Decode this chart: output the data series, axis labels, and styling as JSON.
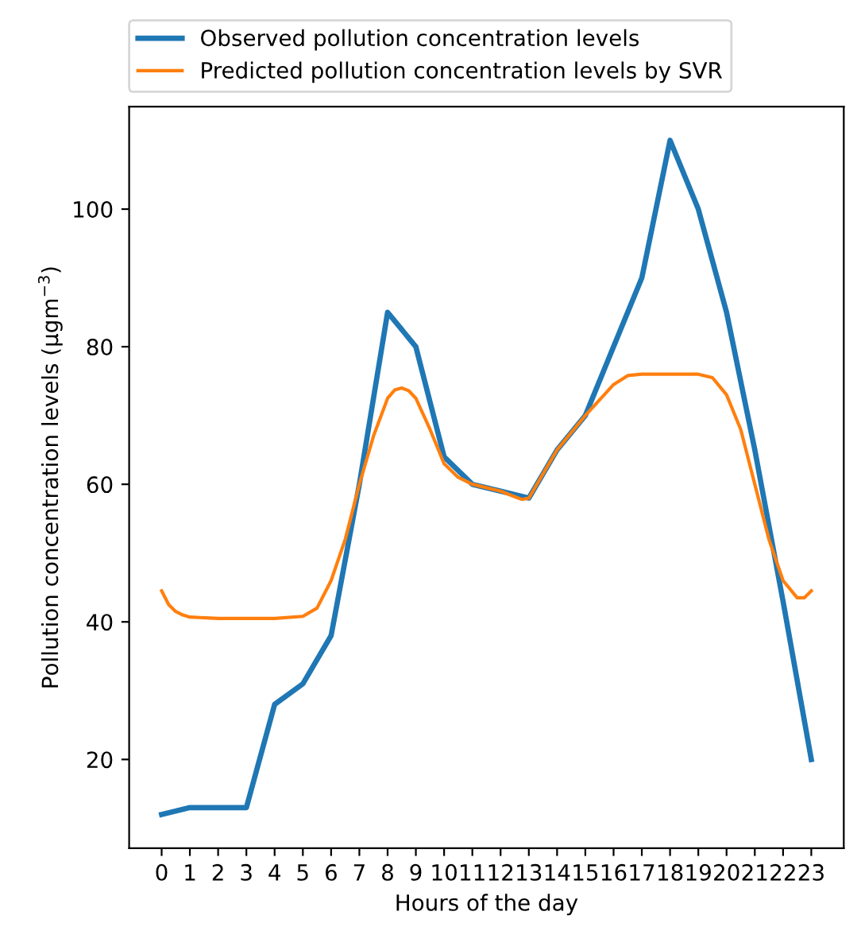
{
  "chart_data": {
    "type": "line",
    "xlabel": "Hours of the day",
    "ylabel": "Pollution concentration levels (μgm$^{−3}$)",
    "x": [
      0,
      1,
      2,
      3,
      4,
      5,
      6,
      7,
      8,
      9,
      10,
      11,
      12,
      13,
      14,
      15,
      16,
      17,
      18,
      19,
      20,
      21,
      22,
      23
    ],
    "xlim": [
      -1.15,
      24.15
    ],
    "xticks": [
      0,
      1,
      2,
      3,
      4,
      5,
      6,
      7,
      8,
      9,
      10,
      11,
      12,
      13,
      14,
      15,
      16,
      17,
      18,
      19,
      20,
      21,
      22,
      23
    ],
    "ylim": [
      7.1,
      114.9
    ],
    "yticks": [
      20,
      40,
      60,
      80,
      100
    ],
    "legend": "top",
    "grid": false,
    "series": [
      {
        "name": "Observed pollution concentration levels",
        "color": "#1f77b4",
        "values": [
          12,
          13,
          13,
          13,
          28,
          31,
          38,
          60,
          85,
          80,
          64,
          60,
          59,
          58,
          65,
          70,
          80,
          90,
          110,
          100,
          85,
          65,
          43,
          20
        ]
      },
      {
        "name": "Predicted pollution concentration levels by SVR",
        "color": "#ff7f0e",
        "x": [
          0,
          0.25,
          0.5,
          0.75,
          1,
          2,
          3,
          4,
          5,
          5.5,
          6,
          6.5,
          7,
          7.5,
          8,
          8.25,
          8.5,
          8.75,
          9,
          9.5,
          10,
          10.5,
          11,
          12,
          12.5,
          12.75,
          13,
          13.5,
          14,
          15,
          16,
          16.5,
          17,
          18,
          19,
          19.5,
          20,
          20.5,
          21,
          21.5,
          22,
          22.5,
          22.75,
          23
        ],
        "values": [
          44.5,
          42.5,
          41.5,
          41,
          40.7,
          40.5,
          40.5,
          40.5,
          40.8,
          42,
          46,
          52,
          60,
          67,
          72.5,
          73.7,
          74,
          73.6,
          72.5,
          68,
          63,
          61,
          60,
          59,
          58.2,
          57.8,
          58,
          61.5,
          65,
          70,
          74.5,
          75.8,
          76,
          76,
          76,
          75.5,
          73,
          68,
          60,
          52,
          46,
          43.5,
          43.5,
          44.5
        ]
      }
    ]
  }
}
